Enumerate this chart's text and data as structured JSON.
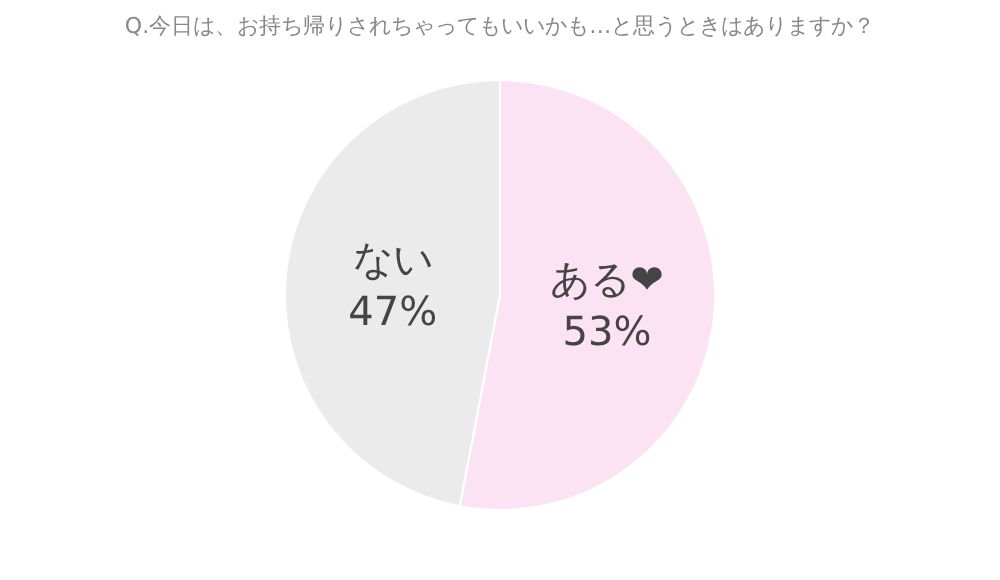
{
  "chart_data": {
    "type": "pie",
    "title": "Q.今日は、お持ち帰りされちゃってもいいかも…と思うときはありますか？",
    "categories": [
      "ある❤",
      "ない"
    ],
    "values": [
      53,
      47
    ],
    "value_labels": [
      "53%",
      "47%"
    ],
    "colors": [
      "#fbe3f3",
      "#ebebeb"
    ],
    "legend": false
  }
}
